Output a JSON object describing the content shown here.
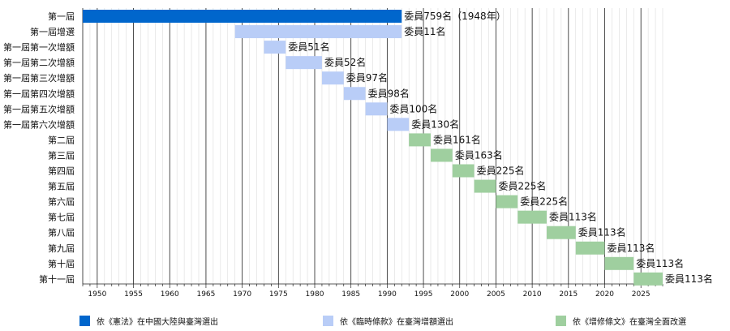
{
  "chart_data": {
    "type": "bar",
    "orientation": "horizontal-timeline",
    "xlim": [
      1948,
      2028
    ],
    "x_ticks": [
      1950,
      1955,
      1960,
      1965,
      1970,
      1975,
      1980,
      1985,
      1990,
      1995,
      2000,
      2005,
      2010,
      2015,
      2020,
      2025
    ],
    "grid": true,
    "legend_placement": "bottom",
    "legend": [
      {
        "label": "依《憲法》在中國大陸與臺灣選出",
        "color": "#0066cc"
      },
      {
        "label": "依《臨時條款》在臺灣增額選出",
        "color": "#b9cdf7"
      },
      {
        "label": "依《增修條文》在臺灣全面改選",
        "color": "#9fcf9f"
      }
    ],
    "rows": [
      {
        "name": "第一屆",
        "start": 1948,
        "end": 1992,
        "label": "委員759名（1948年）",
        "group": 0
      },
      {
        "name": "第一屆增選",
        "start": 1969,
        "end": 1992,
        "label": "委員11名",
        "group": 1
      },
      {
        "name": "第一屆第一次增額",
        "start": 1973,
        "end": 1976,
        "label": "委員51名",
        "group": 1
      },
      {
        "name": "第一屆第二次增額",
        "start": 1976,
        "end": 1981,
        "label": "委員52名",
        "group": 1
      },
      {
        "name": "第一屆第三次增額",
        "start": 1981,
        "end": 1984,
        "label": "委員97名",
        "group": 1
      },
      {
        "name": "第一屆第四次增額",
        "start": 1984,
        "end": 1987,
        "label": "委員98名",
        "group": 1
      },
      {
        "name": "第一屆第五次增額",
        "start": 1987,
        "end": 1990,
        "label": "委員100名",
        "group": 1
      },
      {
        "name": "第一屆第六次增額",
        "start": 1990,
        "end": 1993,
        "label": "委員130名",
        "group": 1
      },
      {
        "name": "第二屆",
        "start": 1993,
        "end": 1996,
        "label": "委員161名",
        "group": 2
      },
      {
        "name": "第三屆",
        "start": 1996,
        "end": 1999,
        "label": "委員163名",
        "group": 2
      },
      {
        "name": "第四屆",
        "start": 1999,
        "end": 2002,
        "label": "委員225名",
        "group": 2
      },
      {
        "name": "第五屆",
        "start": 2002,
        "end": 2005,
        "label": "委員225名",
        "group": 2
      },
      {
        "name": "第六屆",
        "start": 2005,
        "end": 2008,
        "label": "委員225名",
        "group": 2
      },
      {
        "name": "第七屆",
        "start": 2008,
        "end": 2012,
        "label": "委員113名",
        "group": 2
      },
      {
        "name": "第八屆",
        "start": 2012,
        "end": 2016,
        "label": "委員113名",
        "group": 2
      },
      {
        "name": "第九屆",
        "start": 2016,
        "end": 2020,
        "label": "委員113名",
        "group": 2
      },
      {
        "name": "第十屆",
        "start": 2020,
        "end": 2024,
        "label": "委員113名",
        "group": 2
      },
      {
        "name": "第十一屆",
        "start": 2024,
        "end": 2028,
        "label": "委員113名",
        "group": 2
      }
    ]
  }
}
